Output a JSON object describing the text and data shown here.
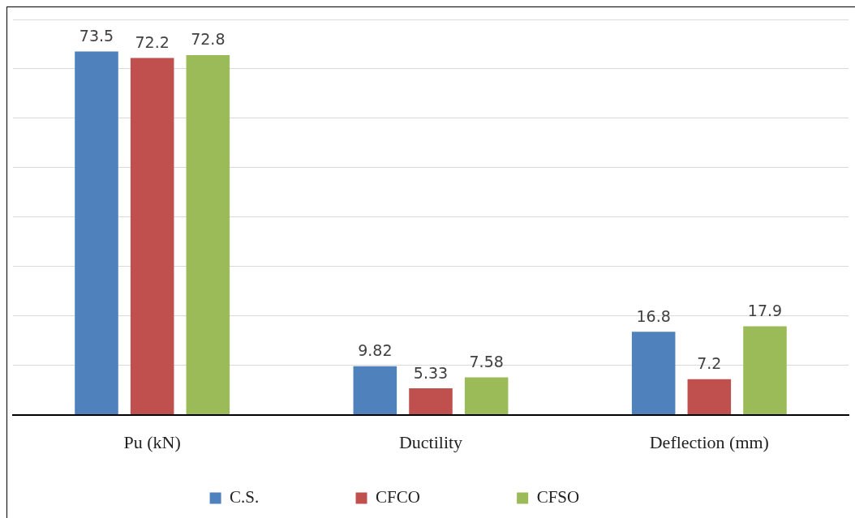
{
  "chart_data": {
    "type": "bar",
    "categories": [
      "Pu (kN)",
      "Ductility",
      "Deflection (mm)"
    ],
    "series": [
      {
        "name": "C.S.",
        "color": "#4f81bd",
        "values": [
          73.5,
          9.82,
          16.8
        ]
      },
      {
        "name": "CFCO",
        "color": "#c0504d",
        "values": [
          72.2,
          5.33,
          7.2
        ]
      },
      {
        "name": "CFSO",
        "color": "#9bbb59",
        "values": [
          72.8,
          7.58,
          17.9
        ]
      }
    ],
    "ylim": [
      0,
      80
    ],
    "yticks": [
      0,
      {
        "value": 10,
        "label": null
      },
      {
        "value": 20,
        "label": null
      },
      {
        "value": 30,
        "label": null
      },
      {
        "value": 40,
        "label": null
      },
      {
        "value": 50,
        "label": null
      },
      {
        "value": 60,
        "label": null
      },
      {
        "value": 70,
        "label": null
      },
      {
        "value": 80,
        "label": null
      }
    ],
    "tick_labels": "x",
    "grid": "y",
    "legend": "bottom",
    "data_labels": true
  }
}
